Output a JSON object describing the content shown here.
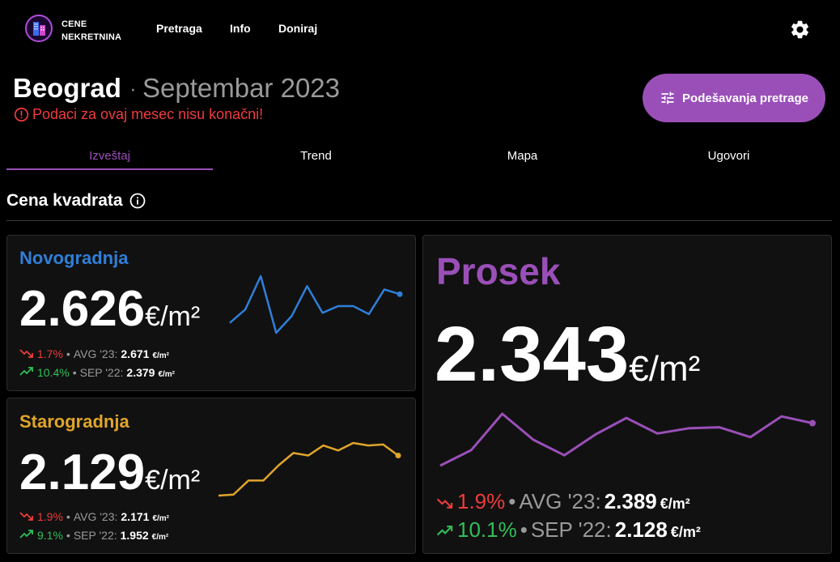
{
  "nav": {
    "brand_line1": "CENE",
    "brand_line2": "NEKRETNINA",
    "links": [
      "Pretraga",
      "Info",
      "Doniraj"
    ],
    "logo_icon": "building-icon",
    "settings_icon": "gear-icon"
  },
  "header": {
    "city": "Beograd",
    "separator": "·",
    "month": "Septembar 2023",
    "warning": "Podaci za ovaj mesec nisu konačni!",
    "search_button": "Podešavanja pretrage"
  },
  "tabs": [
    "Izveštaj",
    "Trend",
    "Mapa",
    "Ugovori"
  ],
  "section": {
    "title": "Cena kvadrata"
  },
  "colors": {
    "accent": "#9a4fb8",
    "novogradnja": "#2f7fd8",
    "starogradnja": "#e0a52a",
    "prosek": "#9a4fb8",
    "down": "#ef3b3b",
    "up": "#2fbf5a"
  },
  "cards": {
    "novogradnja": {
      "title": "Novogradnja",
      "value": "2.626",
      "unit": "€/m²",
      "change1": "1.7%",
      "label1": "AVG '23:",
      "value1": "2.671",
      "unit1": "€/m²",
      "change2": "10.4%",
      "label2": "SEP '22:",
      "value2": "2.379",
      "unit2": "€/m²",
      "bullet": "•"
    },
    "starogradnja": {
      "title": "Starogradnja",
      "value": "2.129",
      "unit": "€/m²",
      "change1": "1.9%",
      "label1": "AVG '23:",
      "value1": "2.171",
      "unit1": "€/m²",
      "change2": "9.1%",
      "label2": "SEP '22:",
      "value2": "1.952",
      "unit2": "€/m²",
      "bullet": "•"
    },
    "prosek": {
      "title": "Prosek",
      "value": "2.343",
      "unit": "€/m²",
      "change1": "1.9%",
      "label1": "AVG '23:",
      "value1": "2.389",
      "unit1": "€/m²",
      "change2": "10.1%",
      "label2": "SEP '22:",
      "value2": "2.128",
      "unit2": "€/m²",
      "bullet": "•"
    }
  },
  "chart_data": [
    {
      "type": "line",
      "series": [
        {
          "values": [
            0.25,
            0.45,
            0.95,
            0.1,
            0.35,
            0.8,
            0.4,
            0.5,
            0.5,
            0.38,
            0.75,
            0.68
          ]
        }
      ]
    },
    {
      "type": "line",
      "series": [
        {
          "values": [
            0.0,
            0.02,
            0.3,
            0.3,
            0.6,
            0.85,
            0.8,
            1.0,
            0.9,
            1.05,
            1.0,
            1.02,
            0.8
          ]
        }
      ]
    },
    {
      "type": "line",
      "series": [
        {
          "values": [
            0.0,
            0.3,
            1.0,
            0.5,
            0.2,
            0.6,
            0.92,
            0.62,
            0.72,
            0.74,
            0.55,
            0.95,
            0.82
          ]
        }
      ]
    }
  ]
}
